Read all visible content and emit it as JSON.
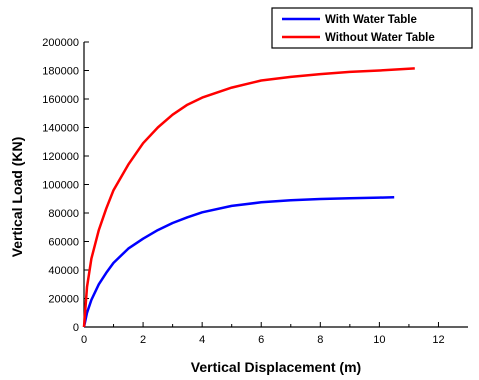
{
  "chart_data": {
    "type": "line",
    "title": "",
    "xlabel": "Vertical Displacement (m)",
    "ylabel": "Vertical Load (KN)",
    "xlim": [
      0,
      13
    ],
    "ylim": [
      0,
      200000
    ],
    "xticks": [
      "0",
      "2",
      "4",
      "6",
      "8",
      "10",
      "12"
    ],
    "yticks": [
      "0",
      "20000",
      "40000",
      "60000",
      "80000",
      "100000",
      "120000",
      "140000",
      "160000",
      "180000",
      "200000"
    ],
    "legend_position": "top-right",
    "grid": false,
    "series": [
      {
        "name": "With Water Table",
        "color": "#0000ff",
        "x": [
          0,
          0.1,
          0.25,
          0.5,
          0.75,
          1,
          1.5,
          2,
          2.5,
          3,
          3.5,
          4,
          5,
          6,
          7,
          8,
          9,
          10,
          10.5
        ],
        "y": [
          0,
          10000,
          19000,
          30000,
          38000,
          45000,
          55000,
          62000,
          68000,
          73000,
          77000,
          80500,
          85000,
          87500,
          89000,
          89800,
          90300,
          90800,
          91000
        ]
      },
      {
        "name": "Without Water Table",
        "color": "#ff0000",
        "x": [
          0,
          0.1,
          0.25,
          0.5,
          0.75,
          1,
          1.5,
          2,
          2.5,
          3,
          3.5,
          4,
          5,
          6,
          7,
          8,
          9,
          10,
          11.2
        ],
        "y": [
          0,
          28000,
          48000,
          68000,
          83000,
          96000,
          114000,
          129000,
          140000,
          149000,
          156000,
          161000,
          168000,
          173000,
          175500,
          177500,
          179000,
          180000,
          181500
        ]
      }
    ]
  }
}
